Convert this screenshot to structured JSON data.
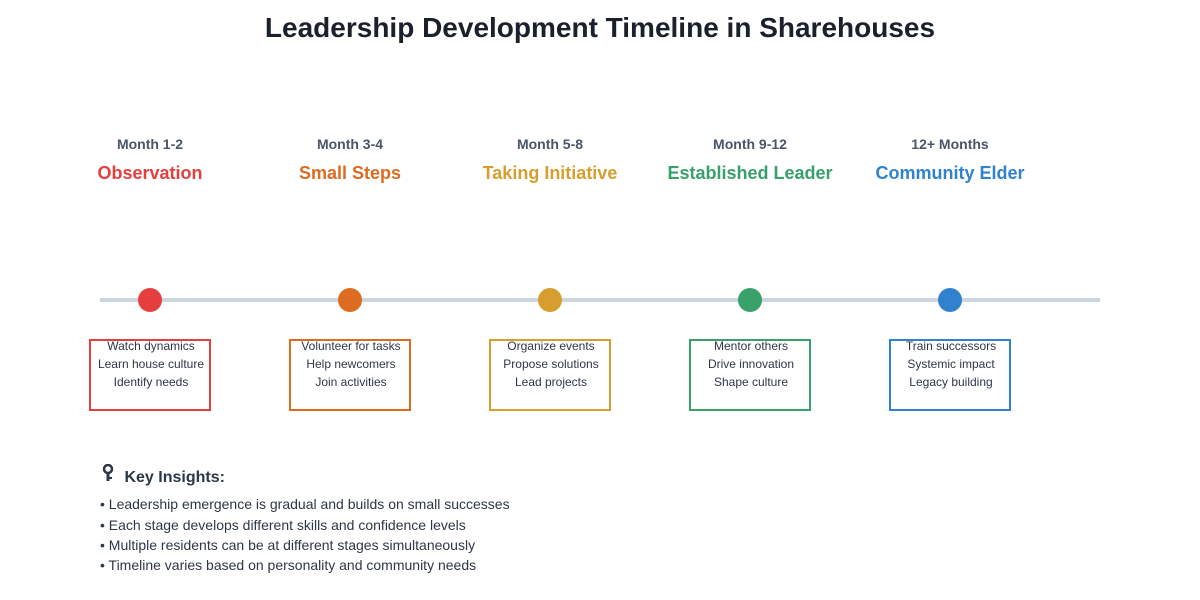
{
  "title": "Leadership Development Timeline in Sharehouses",
  "stages": [
    {
      "period": "Month 1-2",
      "name": "Observation",
      "color": "#e53e3e",
      "items": [
        "Watch dynamics",
        "Learn house culture",
        "Identify needs"
      ]
    },
    {
      "period": "Month 3-4",
      "name": "Small Steps",
      "color": "#dd6b20",
      "items": [
        "Volunteer for tasks",
        "Help newcomers",
        "Join activities"
      ]
    },
    {
      "period": "Month 5-8",
      "name": "Taking Initiative",
      "color": "#d69e2e",
      "items": [
        "Organize events",
        "Propose solutions",
        "Lead projects"
      ]
    },
    {
      "period": "Month 9-12",
      "name": "Established Leader",
      "color": "#38a169",
      "items": [
        "Mentor others",
        "Drive innovation",
        "Shape culture"
      ]
    },
    {
      "period": "12+ Months",
      "name": "Community Elder",
      "color": "#3182ce",
      "items": [
        "Train successors",
        "Systemic impact",
        "Legacy building"
      ]
    }
  ],
  "insights": {
    "icon": "key-icon",
    "glyph": "🔑",
    "heading": "Key Insights:",
    "items": [
      "• Leadership emergence is gradual and builds on small successes",
      "• Each stage develops different skills and confidence levels",
      "• Multiple residents can be at different stages simultaneously",
      "• Timeline varies based on personality and community needs"
    ]
  },
  "colors": {
    "timeline": "#cbd5e0",
    "text": "#2d3748",
    "title": "#1a202c"
  }
}
